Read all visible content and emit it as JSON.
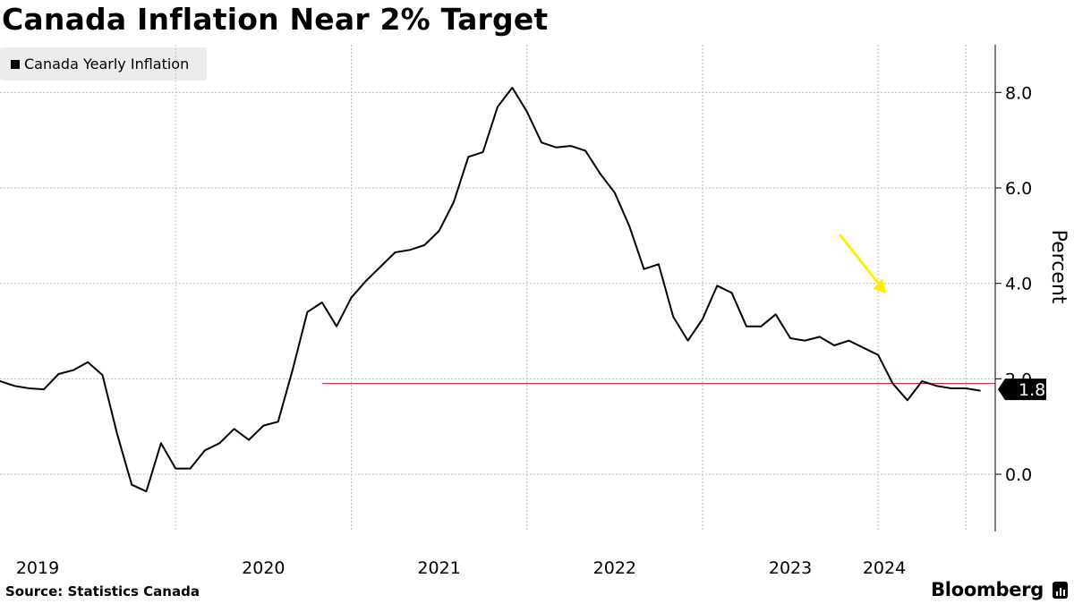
{
  "title": "Canada Inflation Near 2% Target",
  "source": "Source: Statistics Canada",
  "brand": "Bloomberg",
  "colors": {
    "line": "#000000",
    "target_line": "#c8102e",
    "arrow": "#ffee00",
    "grid": "#bbbbbb",
    "legend_bg": "#ececec",
    "last_value_bg": "#000000"
  },
  "chart_data": {
    "type": "line",
    "title": "Canada Inflation Near 2% Target",
    "ylabel": "Percent",
    "ylim": [
      -1.2,
      9.0
    ],
    "yticks": [
      0,
      2,
      4,
      6,
      8
    ],
    "ytick_labels": [
      "0.0",
      "2.0",
      "4.0",
      "6.0",
      "8.0"
    ],
    "xlim": [
      "2019-01",
      "2024-09"
    ],
    "xticks": [
      "2019",
      "2020",
      "2021",
      "2022",
      "2023",
      "2024"
    ],
    "grid": true,
    "legend_position": "top-left",
    "last_value_label": "1.8",
    "reference_line": {
      "y": 1.9,
      "start": "2020-11"
    },
    "series": [
      {
        "name": "Canada Yearly Inflation",
        "x": [
          "2019-01",
          "2019-02",
          "2019-03",
          "2019-04",
          "2019-05",
          "2019-06",
          "2019-07",
          "2019-08",
          "2019-09",
          "2019-10",
          "2019-11",
          "2019-12",
          "2020-01",
          "2020-02",
          "2020-03",
          "2020-04",
          "2020-05",
          "2020-06",
          "2020-07",
          "2020-08",
          "2020-09",
          "2020-10",
          "2020-11",
          "2020-12",
          "2021-01",
          "2021-02",
          "2021-03",
          "2021-04",
          "2021-05",
          "2021-06",
          "2021-07",
          "2021-08",
          "2021-09",
          "2021-10",
          "2021-11",
          "2021-12",
          "2022-01",
          "2022-02",
          "2022-03",
          "2022-04",
          "2022-05",
          "2022-06",
          "2022-07",
          "2022-08",
          "2022-09",
          "2022-10",
          "2022-11",
          "2022-12",
          "2023-01",
          "2023-02",
          "2023-03",
          "2023-04",
          "2023-05",
          "2023-06",
          "2023-07",
          "2023-08",
          "2023-09",
          "2023-10",
          "2023-11",
          "2023-12",
          "2024-01",
          "2024-02",
          "2024-03",
          "2024-04",
          "2024-05",
          "2024-06",
          "2024-07",
          "2024-08"
        ],
        "values": [
          1.95,
          1.85,
          1.8,
          1.78,
          2.1,
          2.18,
          2.35,
          2.08,
          0.85,
          -0.22,
          -0.36,
          0.65,
          0.12,
          0.12,
          0.5,
          0.65,
          0.95,
          0.72,
          1.02,
          1.1,
          2.2,
          3.4,
          3.6,
          3.1,
          3.7,
          4.05,
          4.35,
          4.65,
          4.7,
          4.8,
          5.1,
          5.7,
          6.65,
          6.75,
          7.7,
          8.1,
          7.6,
          6.95,
          6.85,
          6.88,
          6.78,
          6.3,
          5.9,
          5.2,
          4.3,
          4.4,
          3.3,
          2.8,
          3.25,
          3.95,
          3.8,
          3.1,
          3.1,
          3.35,
          2.85,
          2.8,
          2.88,
          2.7,
          2.8,
          2.65,
          2.5,
          1.9,
          1.55,
          1.95,
          1.85,
          1.8,
          1.8,
          1.75
        ]
      }
    ]
  }
}
